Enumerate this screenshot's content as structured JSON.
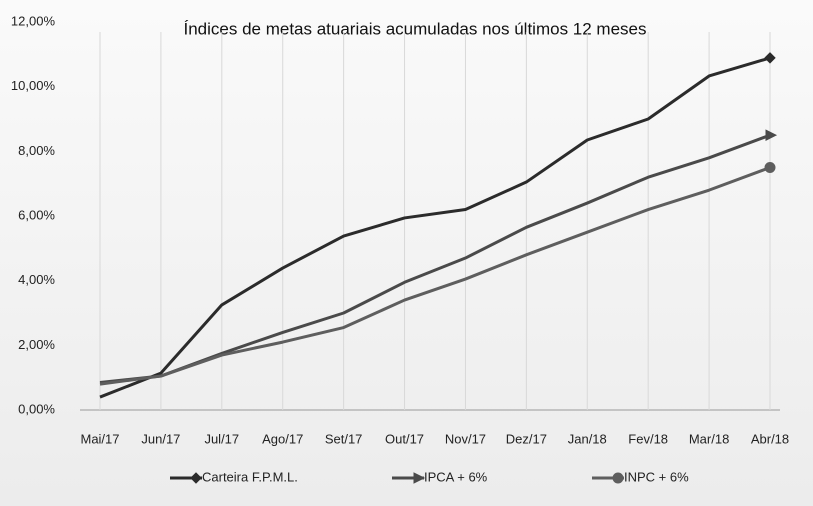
{
  "chart_data": {
    "type": "line",
    "title": "Índices de metas atuariais acumuladas nos últimos 12 meses",
    "categories": [
      "Mai/17",
      "Jun/17",
      "Jul/17",
      "Ago/17",
      "Set/17",
      "Out/17",
      "Nov/17",
      "Dez/17",
      "Jan/18",
      "Fev/18",
      "Mar/18",
      "Abr/18"
    ],
    "series": [
      {
        "name": "Carteira F.P.M.L.",
        "color": "#2b2b2b",
        "marker": "diamond",
        "values": [
          0.4,
          1.14,
          3.25,
          4.39,
          5.38,
          5.94,
          6.2,
          7.05,
          8.35,
          9.0,
          10.33,
          10.89
        ]
      },
      {
        "name": "IPCA + 6%",
        "color": "#4a4a4a",
        "marker": "arrow",
        "values": [
          0.85,
          1.05,
          1.75,
          2.4,
          3.0,
          3.95,
          4.7,
          5.65,
          6.4,
          7.2,
          7.8,
          8.5
        ]
      },
      {
        "name": "INPC + 6%",
        "color": "#5e5e5e",
        "marker": "circle",
        "values": [
          0.8,
          1.05,
          1.7,
          2.1,
          2.55,
          3.4,
          4.05,
          4.8,
          5.5,
          6.2,
          6.8,
          7.5
        ]
      }
    ],
    "ylim": [
      0,
      12
    ],
    "yticks": [
      {
        "value": 0,
        "label": "0,00%"
      },
      {
        "value": 2,
        "label": "2,00%"
      },
      {
        "value": 4,
        "label": "4,00%"
      },
      {
        "value": 6,
        "label": "6,00%"
      },
      {
        "value": 8,
        "label": "8,00%"
      },
      {
        "value": 10,
        "label": "10,00%"
      },
      {
        "value": 12,
        "label": "12,00%"
      }
    ],
    "grid": "x",
    "legend": "bottom"
  }
}
